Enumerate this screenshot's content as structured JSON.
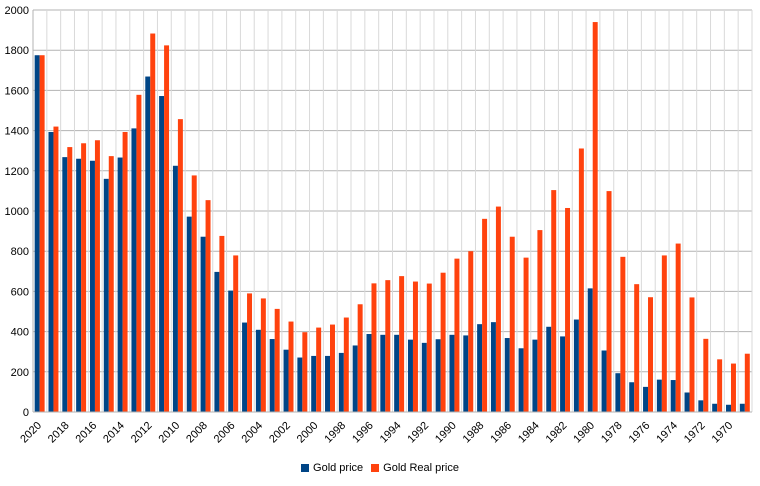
{
  "chart_data": {
    "type": "bar",
    "categories": [
      "2020",
      "2019",
      "2018",
      "2017",
      "2016",
      "2015",
      "2014",
      "2013",
      "2012",
      "2011",
      "2010",
      "2009",
      "2008",
      "2007",
      "2006",
      "2005",
      "2004",
      "2003",
      "2002",
      "2001",
      "2000",
      "1999",
      "1998",
      "1997",
      "1996",
      "1995",
      "1994",
      "1993",
      "1992",
      "1991",
      "1990",
      "1989",
      "1988",
      "1987",
      "1986",
      "1985",
      "1984",
      "1983",
      "1982",
      "1981",
      "1980",
      "1979",
      "1978",
      "1977",
      "1976",
      "1975",
      "1974",
      "1973",
      "1972",
      "1971",
      "1970",
      "1969"
    ],
    "x_tick_labels": [
      "2020",
      "2018",
      "2016",
      "2014",
      "2012",
      "2010",
      "2008",
      "2006",
      "2004",
      "2002",
      "2000",
      "1998",
      "1996",
      "1994",
      "1992",
      "1990",
      "1988",
      "1986",
      "1984",
      "1982",
      "1980",
      "1978",
      "1976",
      "1974",
      "1972",
      "1970"
    ],
    "series": [
      {
        "name": "Gold price",
        "color": "#004586",
        "values": [
          1775,
          1393,
          1268,
          1260,
          1250,
          1160,
          1266,
          1411,
          1669,
          1572,
          1225,
          972,
          872,
          697,
          604,
          445,
          409,
          363,
          310,
          271,
          279,
          279,
          294,
          331,
          388,
          384,
          384,
          360,
          344,
          362,
          384,
          381,
          437,
          447,
          368,
          317,
          360,
          424,
          376,
          460,
          615,
          306,
          193,
          148,
          125,
          161,
          159,
          97,
          58,
          41,
          36,
          41
        ]
      },
      {
        "name": "Gold Real price",
        "color": "#ff420e",
        "values": [
          1775,
          1420,
          1318,
          1337,
          1352,
          1273,
          1393,
          1578,
          1883,
          1824,
          1457,
          1177,
          1054,
          876,
          779,
          590,
          565,
          513,
          450,
          397,
          420,
          435,
          470,
          536,
          640,
          656,
          676,
          649,
          639,
          693,
          763,
          800,
          961,
          1022,
          872,
          768,
          905,
          1104,
          1015,
          1311,
          1940,
          1099,
          772,
          636,
          571,
          779,
          838,
          570,
          364,
          262,
          241,
          290
        ]
      }
    ],
    "ylim": [
      0,
      2000
    ],
    "yticks": [
      0,
      200,
      400,
      600,
      800,
      1000,
      1200,
      1400,
      1600,
      1800,
      2000
    ],
    "grid": true,
    "legend_position": "bottom"
  }
}
